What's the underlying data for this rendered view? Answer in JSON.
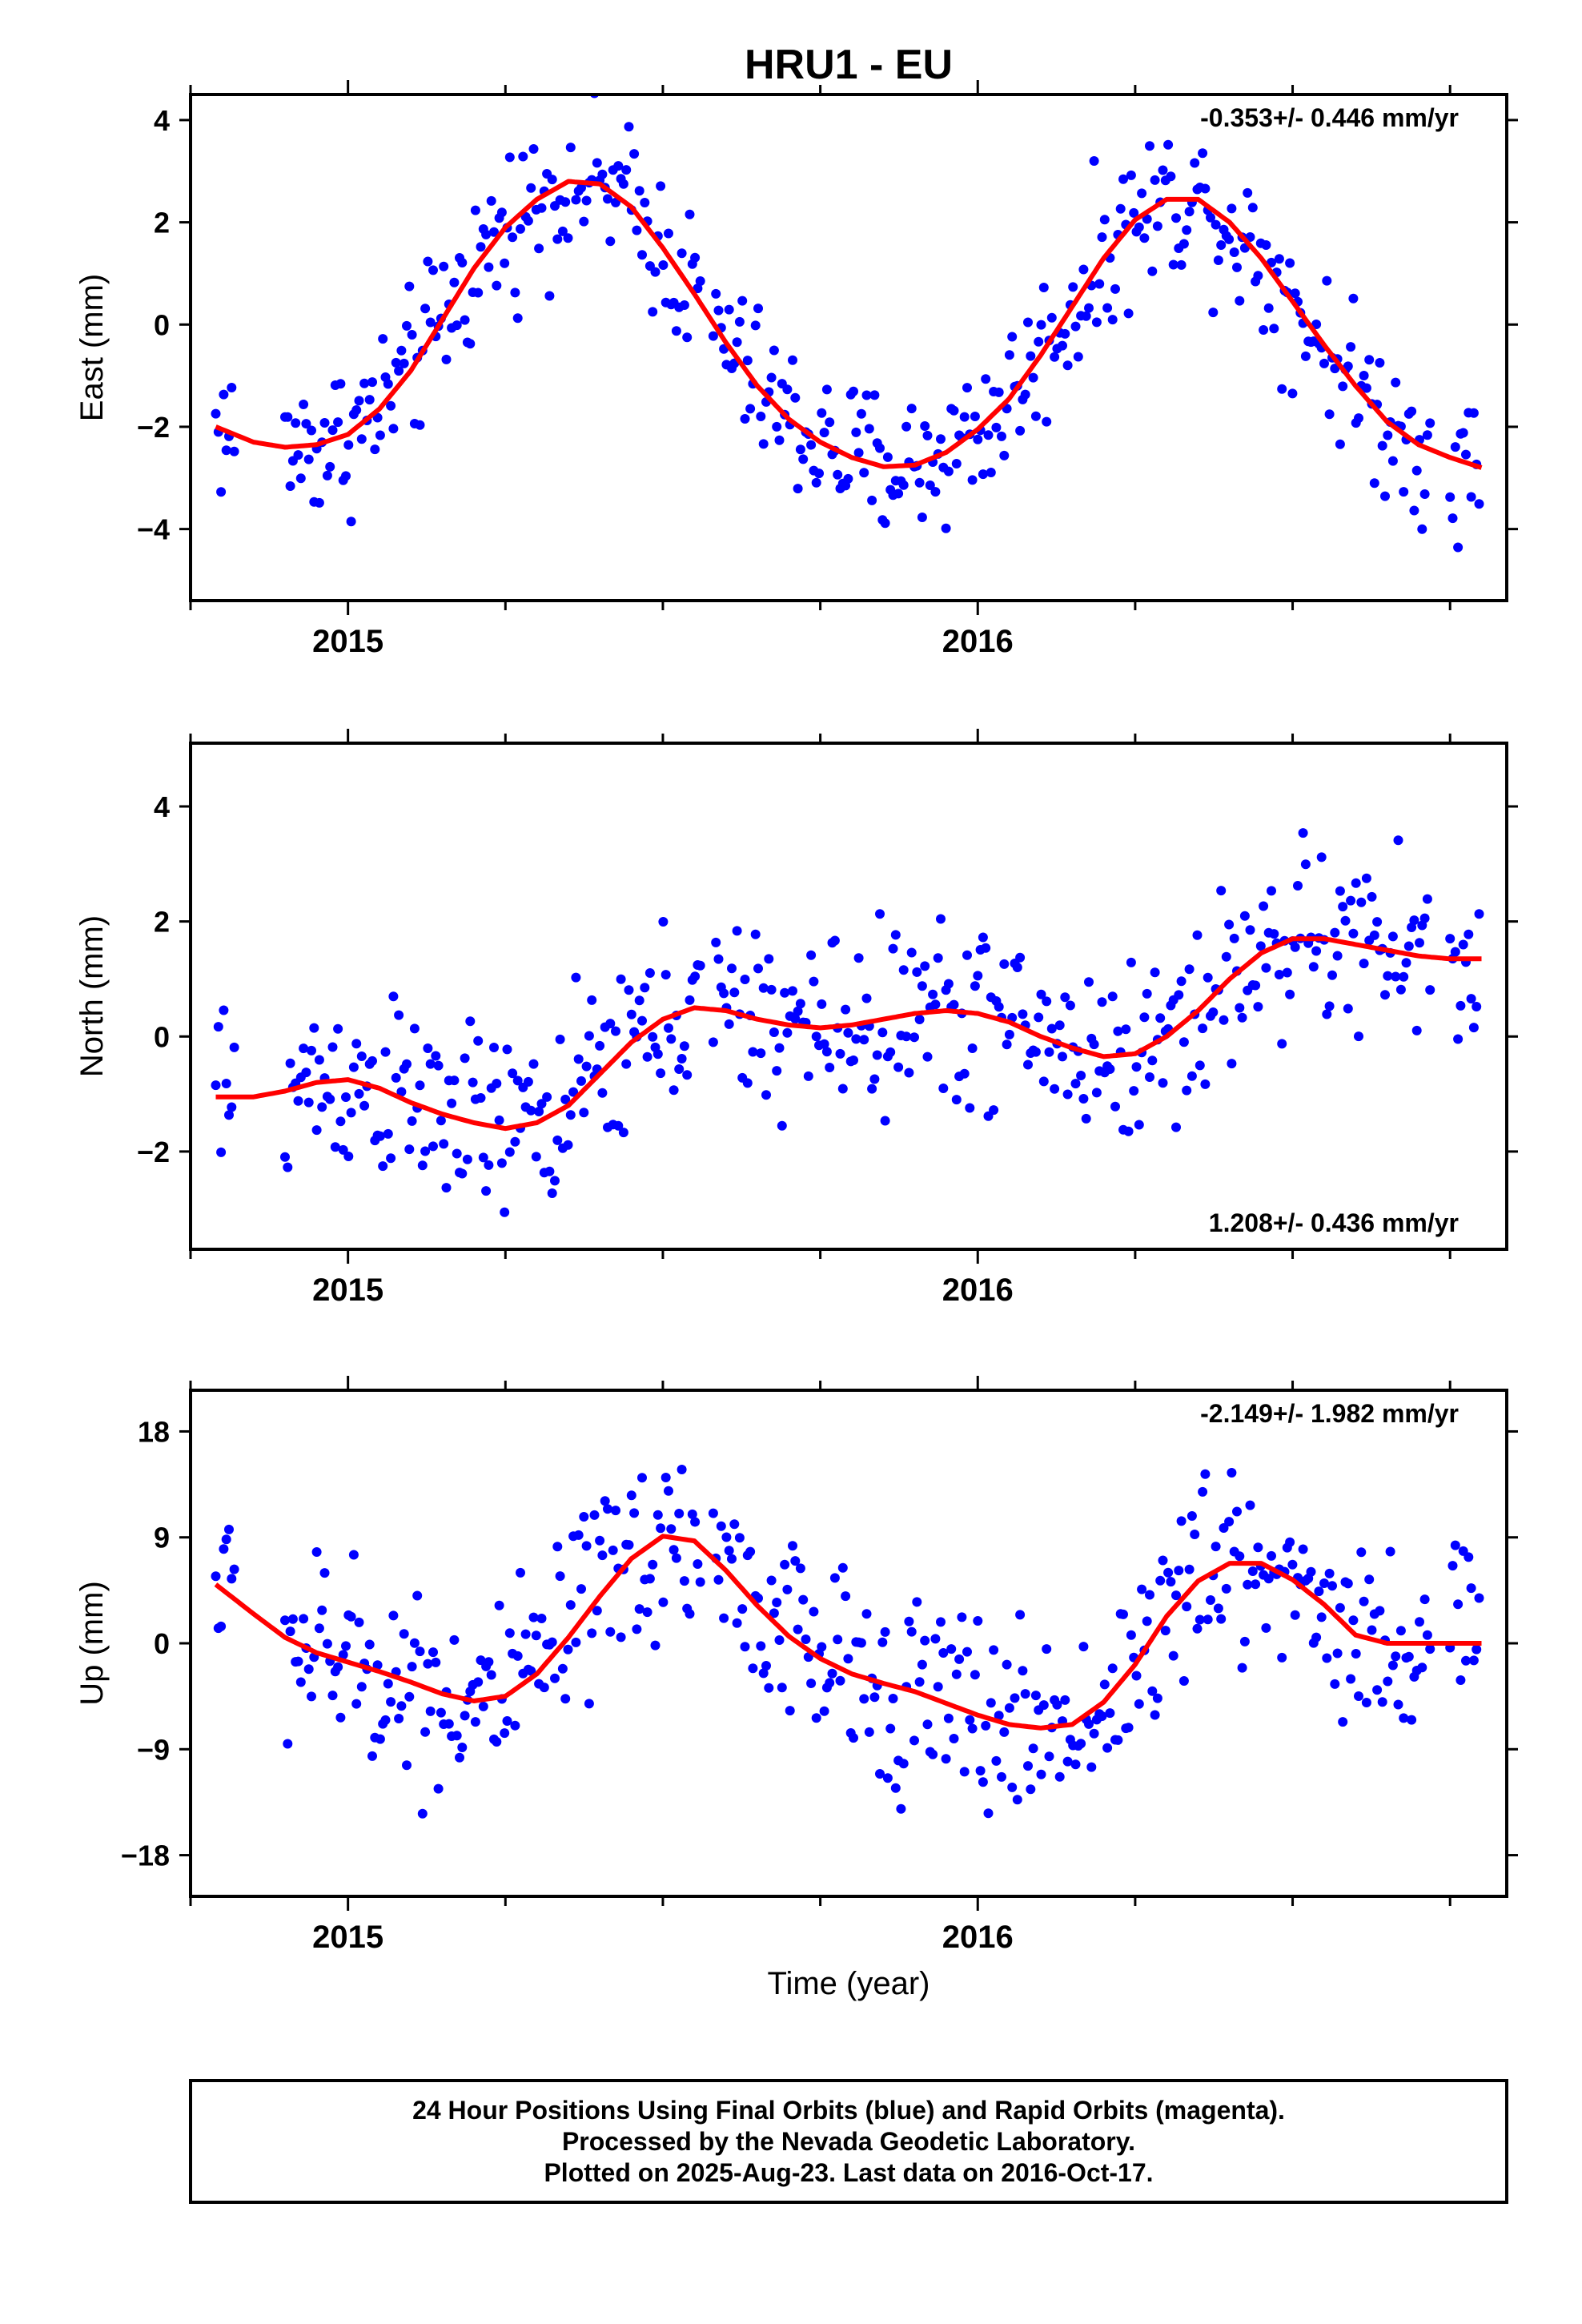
{
  "title": "HRU1 - EU",
  "xlabel": "Time (year)",
  "colors": {
    "final_orbits": "#0000ff",
    "model": "#ff0000"
  },
  "footer": {
    "line1": "24 Hour Positions Using Final Orbits (blue) and Rapid Orbits (magenta).",
    "line2": "Processed by the Nevada Geodetic Laboratory.",
    "line3": "Plotted on 2025-Aug-23. Last data on 2016-Oct-17."
  },
  "chart_data": [
    {
      "type": "scatter",
      "component": "east",
      "ylabel": "East (mm)",
      "rate_label": "-0.353+/- 0.446 mm/yr",
      "xlim": [
        2014.75,
        2016.84
      ],
      "ylim": [
        -5.4,
        4.5
      ],
      "x_ticks": [
        2015,
        2016
      ],
      "x_minor_ticks": [
        2014.75,
        2015.25,
        2015.5,
        2015.75,
        2016.25,
        2016.5,
        2016.75
      ],
      "y_ticks": [
        -4,
        -2,
        0,
        2,
        4
      ],
      "y_tick_labels": [
        "−4",
        "−2",
        "0",
        "2",
        "4"
      ],
      "model_curve": {
        "name": "",
        "x": [
          2014.79,
          2014.85,
          2014.9,
          2014.95,
          2015.0,
          2015.05,
          2015.1,
          2015.15,
          2015.2,
          2015.25,
          2015.3,
          2015.35,
          2015.4,
          2015.45,
          2015.5,
          2015.55,
          2015.6,
          2015.65,
          2015.7,
          2015.75,
          2015.8,
          2015.85,
          2015.9,
          2015.95,
          2016.0,
          2016.05,
          2016.1,
          2016.15,
          2016.2,
          2016.25,
          2016.3,
          2016.35,
          2016.4,
          2016.45,
          2016.5,
          2016.55,
          2016.6,
          2016.65,
          2016.7,
          2016.75,
          2016.8
        ],
        "y": [
          -2.0,
          -2.3,
          -2.4,
          -2.35,
          -2.15,
          -1.65,
          -0.9,
          0.1,
          1.1,
          1.9,
          2.45,
          2.8,
          2.75,
          2.3,
          1.5,
          0.6,
          -0.35,
          -1.2,
          -1.85,
          -2.3,
          -2.6,
          -2.78,
          -2.75,
          -2.5,
          -2.05,
          -1.45,
          -0.6,
          0.35,
          1.3,
          2.05,
          2.45,
          2.45,
          2.0,
          1.3,
          0.45,
          -0.4,
          -1.2,
          -1.9,
          -2.35,
          -2.6,
          -2.8
        ]
      },
      "amplitude": 2.6,
      "noise": 0.75
    },
    {
      "type": "scatter",
      "component": "north",
      "ylabel": "North (mm)",
      "rate_label": "1.208+/- 0.436 mm/yr",
      "xlim": [
        2014.75,
        2016.84
      ],
      "ylim": [
        -3.7,
        5.1
      ],
      "x_ticks": [
        2015,
        2016
      ],
      "x_minor_ticks": [
        2014.75,
        2015.25,
        2015.5,
        2015.75,
        2016.25,
        2016.5,
        2016.75
      ],
      "y_ticks": [
        -2,
        0,
        2,
        4
      ],
      "y_tick_labels": [
        "−2",
        "0",
        "2",
        "4"
      ],
      "model_curve": {
        "name": "",
        "x": [
          2014.79,
          2014.85,
          2014.9,
          2014.95,
          2015.0,
          2015.05,
          2015.1,
          2015.15,
          2015.2,
          2015.25,
          2015.3,
          2015.35,
          2015.4,
          2015.45,
          2015.5,
          2015.55,
          2015.6,
          2015.65,
          2015.7,
          2015.75,
          2015.8,
          2015.85,
          2015.9,
          2015.95,
          2016.0,
          2016.05,
          2016.1,
          2016.15,
          2016.2,
          2016.25,
          2016.3,
          2016.35,
          2016.4,
          2016.45,
          2016.5,
          2016.55,
          2016.6,
          2016.65,
          2016.7,
          2016.75,
          2016.8
        ],
        "y": [
          -1.05,
          -1.05,
          -0.95,
          -0.8,
          -0.75,
          -0.9,
          -1.15,
          -1.35,
          -1.5,
          -1.6,
          -1.5,
          -1.2,
          -0.65,
          -0.1,
          0.3,
          0.5,
          0.45,
          0.3,
          0.2,
          0.15,
          0.2,
          0.3,
          0.4,
          0.45,
          0.4,
          0.25,
          0.0,
          -0.2,
          -0.35,
          -0.3,
          0.0,
          0.45,
          1.0,
          1.45,
          1.7,
          1.7,
          1.6,
          1.5,
          1.4,
          1.35,
          1.35
        ]
      },
      "amplitude": 0,
      "noise": 0.8
    },
    {
      "type": "scatter",
      "component": "up",
      "ylabel": "Up (mm)",
      "rate_label": "-2.149+/- 1.982 mm/yr",
      "xlim": [
        2014.75,
        2016.84
      ],
      "ylim": [
        -21.5,
        21.5
      ],
      "x_ticks": [
        2015,
        2016
      ],
      "x_minor_ticks": [
        2014.75,
        2015.25,
        2015.5,
        2015.75,
        2016.25,
        2016.5,
        2016.75
      ],
      "y_ticks": [
        -18,
        -9,
        0,
        9,
        18
      ],
      "y_tick_labels": [
        "−18",
        "−9",
        "0",
        "9",
        "18"
      ],
      "model_curve": {
        "name": "",
        "x": [
          2014.79,
          2014.85,
          2014.9,
          2014.95,
          2015.0,
          2015.05,
          2015.1,
          2015.15,
          2015.2,
          2015.25,
          2015.3,
          2015.35,
          2015.4,
          2015.45,
          2015.5,
          2015.55,
          2015.6,
          2015.65,
          2015.7,
          2015.75,
          2015.8,
          2015.85,
          2015.9,
          2015.95,
          2016.0,
          2016.05,
          2016.1,
          2016.15,
          2016.2,
          2016.25,
          2016.3,
          2016.35,
          2016.4,
          2016.45,
          2016.5,
          2016.55,
          2016.6,
          2016.65,
          2016.7,
          2016.75,
          2016.8
        ],
        "y": [
          5.0,
          2.5,
          0.5,
          -0.8,
          -1.6,
          -2.4,
          -3.3,
          -4.3,
          -4.9,
          -4.5,
          -2.6,
          0.5,
          4.0,
          7.2,
          9.1,
          8.7,
          6.2,
          3.2,
          0.6,
          -1.3,
          -2.6,
          -3.4,
          -4.1,
          -5.1,
          -6.1,
          -6.9,
          -7.2,
          -6.9,
          -5.0,
          -1.8,
          2.3,
          5.3,
          6.8,
          6.8,
          5.4,
          3.3,
          0.7,
          0.0,
          0.0,
          0.0,
          0.0
        ]
      },
      "amplitude": 0,
      "noise": 4.2
    }
  ]
}
